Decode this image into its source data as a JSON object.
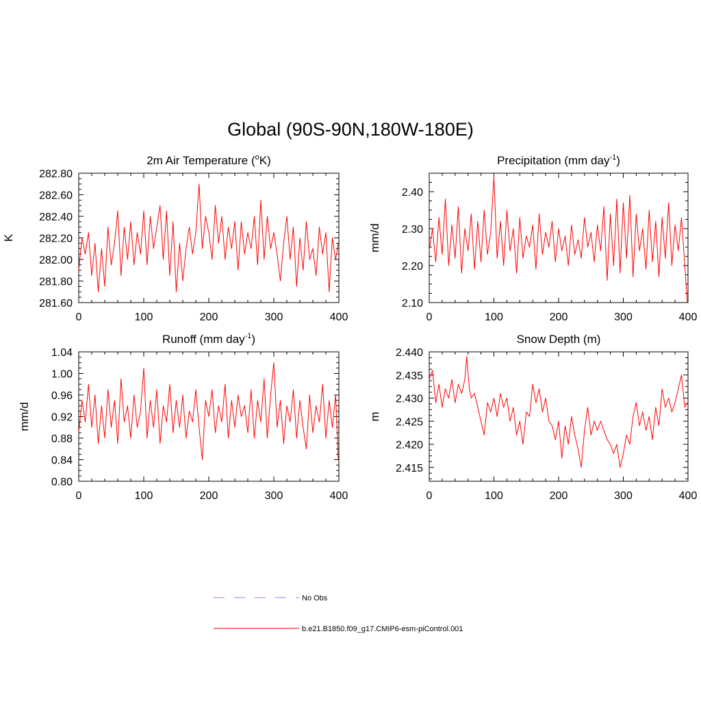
{
  "figure": {
    "title": "Global (90S-90N,180W-180E)",
    "line_color": "#ff0000",
    "obs_color": "#9999ff"
  },
  "legend": {
    "obs_label": "No Obs",
    "model_label": "b.e21.B1850.f09_g17.CMIP6-esm-piControl.001"
  },
  "chart_data": [
    {
      "type": "line",
      "title_main": "2m Air Temperature (",
      "title_sup": "o",
      "title_tail": "K)",
      "ylabel": "K",
      "xlim": [
        0,
        400
      ],
      "ylim": [
        281.6,
        282.8
      ],
      "xticks": [
        0,
        100,
        200,
        300,
        400
      ],
      "xtick_labels": [
        "0",
        "100",
        "200",
        "300",
        "400"
      ],
      "yticks": [
        281.6,
        281.8,
        282.0,
        282.2,
        282.4,
        282.6,
        282.8
      ],
      "ytick_labels": [
        "281.60",
        "281.80",
        "282.00",
        "282.20",
        "282.40",
        "282.60",
        "282.80"
      ],
      "series_name": "b.e21.B1850.f09_g17.CMIP6-esm-piControl.001",
      "x": [
        0,
        5,
        10,
        15,
        20,
        25,
        30,
        35,
        40,
        45,
        50,
        55,
        60,
        65,
        70,
        75,
        80,
        85,
        90,
        95,
        100,
        105,
        110,
        115,
        120,
        125,
        130,
        135,
        140,
        145,
        150,
        155,
        160,
        165,
        170,
        175,
        180,
        185,
        190,
        195,
        200,
        205,
        210,
        215,
        220,
        225,
        230,
        235,
        240,
        245,
        250,
        255,
        260,
        265,
        270,
        275,
        280,
        285,
        290,
        295,
        300,
        305,
        310,
        315,
        320,
        325,
        330,
        335,
        340,
        345,
        350,
        355,
        360,
        365,
        370,
        375,
        380,
        385,
        390,
        395,
        399
      ],
      "values": [
        281.9,
        282.2,
        282.05,
        282.25,
        281.85,
        282.15,
        281.7,
        282.1,
        281.75,
        282.3,
        281.95,
        282.15,
        282.45,
        281.85,
        282.3,
        282.0,
        282.35,
        281.95,
        282.25,
        282.05,
        282.45,
        281.95,
        282.4,
        282.1,
        282.3,
        282.5,
        282.0,
        282.45,
        281.85,
        282.35,
        281.7,
        282.15,
        281.8,
        282.1,
        282.3,
        282.05,
        282.25,
        282.7,
        282.1,
        282.4,
        282.25,
        282.0,
        282.5,
        282.15,
        282.4,
        282.0,
        282.3,
        282.1,
        282.35,
        281.9,
        282.35,
        282.05,
        282.25,
        282.1,
        282.4,
        281.95,
        282.55,
        282.0,
        282.4,
        282.1,
        282.25,
        282.05,
        281.8,
        282.15,
        282.4,
        282.0,
        282.3,
        281.75,
        282.2,
        281.9,
        282.35,
        282.0,
        282.1,
        281.85,
        282.3,
        282.05,
        282.25,
        281.7,
        282.2,
        282.0,
        282.15
      ]
    },
    {
      "type": "line",
      "title_main": "Precipitation (mm day",
      "title_sup": "-1",
      "title_tail": ")",
      "ylabel": "mm/d",
      "xlim": [
        0,
        400
      ],
      "ylim": [
        2.1,
        2.45
      ],
      "xticks": [
        0,
        100,
        200,
        300,
        400
      ],
      "xtick_labels": [
        "0",
        "100",
        "200",
        "300",
        "400"
      ],
      "yticks": [
        2.1,
        2.2,
        2.3,
        2.4
      ],
      "ytick_labels": [
        "2.10",
        "2.20",
        "2.30",
        "2.40"
      ],
      "series_name": "b.e21.B1850.f09_g17.CMIP6-esm-piControl.001",
      "x": [
        0,
        5,
        10,
        15,
        20,
        25,
        30,
        35,
        40,
        45,
        50,
        55,
        60,
        65,
        70,
        75,
        80,
        85,
        90,
        95,
        100,
        105,
        110,
        115,
        120,
        125,
        130,
        135,
        140,
        145,
        150,
        155,
        160,
        165,
        170,
        175,
        180,
        185,
        190,
        195,
        200,
        205,
        210,
        215,
        220,
        225,
        230,
        235,
        240,
        245,
        250,
        255,
        260,
        265,
        270,
        275,
        280,
        285,
        290,
        295,
        300,
        305,
        310,
        315,
        320,
        325,
        330,
        335,
        340,
        345,
        350,
        355,
        360,
        365,
        370,
        375,
        380,
        385,
        390,
        395,
        399
      ],
      "values": [
        2.24,
        2.3,
        2.21,
        2.33,
        2.23,
        2.38,
        2.2,
        2.31,
        2.22,
        2.36,
        2.18,
        2.3,
        2.24,
        2.34,
        2.19,
        2.32,
        2.21,
        2.35,
        2.23,
        2.29,
        2.44,
        2.22,
        2.32,
        2.2,
        2.35,
        2.24,
        2.3,
        2.18,
        2.33,
        2.22,
        2.28,
        2.25,
        2.31,
        2.19,
        2.34,
        2.23,
        2.29,
        2.25,
        2.32,
        2.21,
        2.3,
        2.24,
        2.28,
        2.2,
        2.31,
        2.23,
        2.27,
        2.22,
        2.33,
        2.25,
        2.29,
        2.21,
        2.31,
        2.24,
        2.36,
        2.16,
        2.34,
        2.2,
        2.38,
        2.18,
        2.37,
        2.22,
        2.39,
        2.17,
        2.34,
        2.24,
        2.3,
        2.19,
        2.35,
        2.21,
        2.32,
        2.17,
        2.33,
        2.22,
        2.37,
        2.2,
        2.31,
        2.24,
        2.33,
        2.2,
        2.1
      ]
    },
    {
      "type": "line",
      "title_main": "Runoff (mm day",
      "title_sup": "-1",
      "title_tail": ")",
      "ylabel": "mm/d",
      "xlim": [
        0,
        400
      ],
      "ylim": [
        0.8,
        1.04
      ],
      "xticks": [
        0,
        100,
        200,
        300,
        400
      ],
      "xtick_labels": [
        "0",
        "100",
        "200",
        "300",
        "400"
      ],
      "yticks": [
        0.8,
        0.84,
        0.88,
        0.92,
        0.96,
        1.0,
        1.04
      ],
      "ytick_labels": [
        "0.80",
        "0.84",
        "0.88",
        "0.92",
        "0.96",
        "1.00",
        "1.04"
      ],
      "series_name": "b.e21.B1850.f09_g17.CMIP6-esm-piControl.001",
      "x": [
        0,
        5,
        10,
        15,
        20,
        25,
        30,
        35,
        40,
        45,
        50,
        55,
        60,
        65,
        70,
        75,
        80,
        85,
        90,
        95,
        100,
        105,
        110,
        115,
        120,
        125,
        130,
        135,
        140,
        145,
        150,
        155,
        160,
        165,
        170,
        175,
        180,
        185,
        190,
        195,
        200,
        205,
        210,
        215,
        220,
        225,
        230,
        235,
        240,
        245,
        250,
        255,
        260,
        265,
        270,
        275,
        280,
        285,
        290,
        295,
        300,
        305,
        310,
        315,
        320,
        325,
        330,
        335,
        340,
        345,
        350,
        355,
        360,
        365,
        370,
        375,
        380,
        385,
        390,
        395,
        399
      ],
      "values": [
        0.89,
        0.95,
        0.91,
        0.98,
        0.9,
        0.96,
        0.87,
        0.94,
        0.88,
        0.97,
        0.9,
        0.95,
        0.87,
        0.99,
        0.91,
        0.94,
        0.88,
        0.96,
        0.9,
        0.93,
        1.01,
        0.88,
        0.95,
        0.9,
        0.97,
        0.87,
        0.94,
        0.91,
        0.98,
        0.89,
        0.95,
        0.9,
        0.96,
        0.88,
        0.93,
        0.91,
        0.97,
        0.9,
        0.84,
        0.95,
        0.92,
        0.97,
        0.89,
        0.94,
        0.91,
        0.98,
        0.88,
        0.95,
        0.9,
        0.96,
        0.92,
        0.94,
        0.89,
        0.97,
        0.88,
        0.95,
        0.91,
        0.99,
        0.88,
        0.96,
        1.02,
        0.9,
        0.95,
        0.87,
        0.94,
        0.91,
        0.97,
        0.88,
        0.95,
        0.9,
        0.86,
        0.96,
        0.89,
        0.94,
        0.91,
        0.98,
        0.88,
        0.95,
        0.9,
        0.96,
        0.84
      ]
    },
    {
      "type": "line",
      "title_main": "Snow Depth (m)",
      "title_sup": "",
      "title_tail": "",
      "ylabel": "m",
      "xlim": [
        0,
        400
      ],
      "ylim": [
        2.412,
        2.44
      ],
      "xticks": [
        0,
        100,
        200,
        300,
        400
      ],
      "xtick_labels": [
        "0",
        "100",
        "200",
        "300",
        "400"
      ],
      "yticks": [
        2.415,
        2.42,
        2.425,
        2.43,
        2.435,
        2.44
      ],
      "ytick_labels": [
        "2.415",
        "2.420",
        "2.425",
        "2.430",
        "2.435",
        "2.440"
      ],
      "series_name": "b.e21.B1850.f09_g17.CMIP6-esm-piControl.001",
      "x": [
        0,
        5,
        10,
        15,
        20,
        25,
        30,
        35,
        40,
        45,
        50,
        55,
        58,
        62,
        65,
        70,
        75,
        80,
        85,
        90,
        95,
        100,
        105,
        110,
        115,
        120,
        125,
        130,
        135,
        140,
        145,
        150,
        155,
        160,
        165,
        170,
        175,
        180,
        185,
        190,
        195,
        200,
        205,
        210,
        215,
        220,
        225,
        230,
        235,
        240,
        245,
        250,
        255,
        260,
        265,
        270,
        275,
        280,
        285,
        290,
        295,
        300,
        305,
        310,
        315,
        320,
        325,
        330,
        335,
        340,
        345,
        350,
        355,
        360,
        365,
        370,
        375,
        380,
        385,
        390,
        395,
        399
      ],
      "values": [
        2.434,
        2.436,
        2.429,
        2.433,
        2.428,
        2.432,
        2.43,
        2.434,
        2.429,
        2.433,
        2.431,
        2.434,
        2.439,
        2.432,
        2.43,
        2.431,
        2.428,
        2.425,
        2.422,
        2.429,
        2.427,
        2.43,
        2.426,
        2.431,
        2.428,
        2.43,
        2.425,
        2.428,
        2.422,
        2.425,
        2.42,
        2.427,
        2.426,
        2.433,
        2.429,
        2.432,
        2.427,
        2.43,
        2.425,
        2.424,
        2.421,
        2.425,
        2.417,
        2.424,
        2.42,
        2.426,
        2.422,
        2.419,
        2.415,
        2.423,
        2.428,
        2.422,
        2.425,
        2.423,
        2.425,
        2.423,
        2.421,
        2.42,
        2.418,
        2.42,
        2.415,
        2.418,
        2.422,
        2.42,
        2.426,
        2.429,
        2.424,
        2.427,
        2.423,
        2.426,
        2.421,
        2.428,
        2.424,
        2.432,
        2.428,
        2.43,
        2.427,
        2.429,
        2.432,
        2.435,
        2.428,
        2.429
      ]
    }
  ]
}
